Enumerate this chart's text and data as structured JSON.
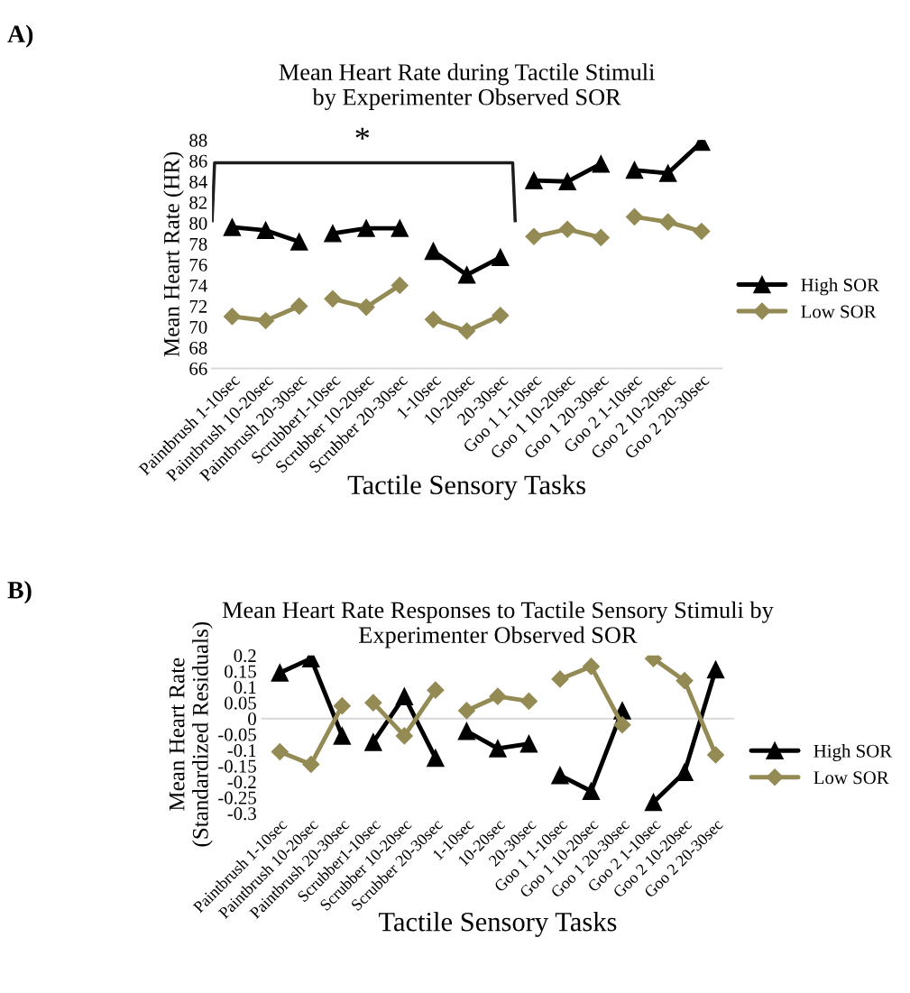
{
  "chart_data": [
    {
      "type": "line",
      "title": "Mean Heart Rate during Tactile Stimuli\nby Experimenter Observed SOR",
      "xlabel": "Tactile Sensory Tasks",
      "ylabel": "Mean Heart Rate (HR)",
      "categories": [
        "Paintbrush 1-10sec",
        "Paintbrush 10-20sec",
        "Paintbrush 20-30sec",
        "Scrubber1-10sec",
        "Scrubber 10-20sec",
        "Scrubber 20-30sec",
        "1-10sec",
        "10-20sec",
        "20-30sec",
        "Goo 1 1-10sec",
        "Goo 1 10-20sec",
        "Goo 1 20-30sec",
        "Goo 2 1-10sec",
        "Goo 2 10-20sec",
        "Goo 2 20-30sec"
      ],
      "series": [
        {
          "name": "High SOR",
          "color": "#000000",
          "marker": "triangle",
          "values": [
            79.6,
            79.3,
            78.2,
            null,
            null,
            null,
            null,
            null,
            null,
            null,
            null,
            null,
            null,
            null,
            null
          ]
        },
        {
          "color": "#000000",
          "marker": "triangle",
          "values": [
            null,
            null,
            null,
            79.0,
            79.5,
            79.5,
            null,
            null,
            null,
            null,
            null,
            null,
            null,
            null,
            null
          ]
        },
        {
          "color": "#000000",
          "marker": "triangle",
          "values": [
            null,
            null,
            null,
            null,
            null,
            null,
            77.3,
            75.0,
            76.7,
            null,
            null,
            null,
            null,
            null,
            null
          ]
        },
        {
          "color": "#000000",
          "marker": "triangle",
          "values": [
            null,
            null,
            null,
            null,
            null,
            null,
            null,
            null,
            null,
            84.1,
            84.0,
            85.7,
            null,
            null,
            null
          ]
        },
        {
          "color": "#000000",
          "marker": "triangle",
          "values": [
            null,
            null,
            null,
            null,
            null,
            null,
            null,
            null,
            null,
            null,
            null,
            null,
            85.1,
            84.8,
            87.8
          ]
        },
        {
          "name": "Low SOR",
          "color": "#948a54",
          "marker": "diamond",
          "values": [
            71.0,
            70.6,
            72.0,
            null,
            null,
            null,
            null,
            null,
            null,
            null,
            null,
            null,
            null,
            null,
            null
          ]
        },
        {
          "color": "#948a54",
          "marker": "diamond",
          "values": [
            null,
            null,
            null,
            72.7,
            71.9,
            74.0,
            null,
            null,
            null,
            null,
            null,
            null,
            null,
            null,
            null
          ]
        },
        {
          "color": "#948a54",
          "marker": "diamond",
          "values": [
            null,
            null,
            null,
            null,
            null,
            null,
            70.7,
            69.6,
            71.1,
            null,
            null,
            null,
            null,
            null,
            null
          ]
        },
        {
          "color": "#948a54",
          "marker": "diamond",
          "values": [
            null,
            null,
            null,
            null,
            null,
            null,
            null,
            null,
            null,
            78.7,
            79.4,
            78.6,
            null,
            null,
            null
          ]
        },
        {
          "color": "#948a54",
          "marker": "diamond",
          "values": [
            null,
            null,
            null,
            null,
            null,
            null,
            null,
            null,
            null,
            null,
            null,
            null,
            80.6,
            80.1,
            79.2
          ]
        }
      ],
      "ylim": [
        66,
        88
      ],
      "yticks": [
        66,
        68,
        70,
        72,
        74,
        76,
        78,
        80,
        82,
        84,
        86,
        88
      ],
      "grid": false,
      "legend": "right",
      "line_style": "solid",
      "annotations": [
        "A)",
        "*"
      ]
    },
    {
      "type": "line",
      "title": "Mean Heart Rate Responses to Tactile Sensory Stimuli by\nExperimenter Observed SOR",
      "xlabel": "Tactile Sensory Tasks",
      "ylabel": "Mean Heart Rate\n(Standardized Residuals)",
      "categories": [
        "Paintbrush 1-10sec",
        "Paintbrush 10-20sec",
        "Paintbrush 20-30sec",
        "Scrubber1-10sec",
        "Scrubber 10-20sec",
        "Scrubber 20-30sec",
        "1-10sec",
        "10-20sec",
        "20-30sec",
        "Goo 1 1-10sec",
        "Goo 1 10-20sec",
        "Goo 1 20-30sec",
        "Goo 2 1-10sec",
        "Goo 2 10-20sec",
        "Goo 2 20-30sec"
      ],
      "series": [
        {
          "name": "High SOR",
          "color": "#000000",
          "marker": "triangle",
          "values": [
            0.145,
            0.19,
            -0.055,
            null,
            null,
            null,
            null,
            null,
            null,
            null,
            null,
            null,
            null,
            null,
            null
          ]
        },
        {
          "color": "#000000",
          "marker": "triangle",
          "values": [
            null,
            null,
            null,
            -0.075,
            0.07,
            -0.125,
            null,
            null,
            null,
            null,
            null,
            null,
            null,
            null,
            null
          ]
        },
        {
          "color": "#000000",
          "marker": "triangle",
          "values": [
            null,
            null,
            null,
            null,
            null,
            null,
            -0.04,
            -0.095,
            -0.08,
            null,
            null,
            null,
            null,
            null,
            null
          ]
        },
        {
          "color": "#000000",
          "marker": "triangle",
          "values": [
            null,
            null,
            null,
            null,
            null,
            null,
            null,
            null,
            null,
            -0.18,
            -0.23,
            0.025,
            null,
            null,
            null
          ]
        },
        {
          "color": "#000000",
          "marker": "triangle",
          "values": [
            null,
            null,
            null,
            null,
            null,
            null,
            null,
            null,
            null,
            null,
            null,
            null,
            -0.265,
            -0.17,
            0.155
          ]
        },
        {
          "name": "Low SOR",
          "color": "#948a54",
          "marker": "diamond",
          "values": [
            -0.105,
            -0.145,
            0.04,
            null,
            null,
            null,
            null,
            null,
            null,
            null,
            null,
            null,
            null,
            null,
            null
          ]
        },
        {
          "color": "#948a54",
          "marker": "diamond",
          "values": [
            null,
            null,
            null,
            0.05,
            -0.055,
            0.09,
            null,
            null,
            null,
            null,
            null,
            null,
            null,
            null,
            null
          ]
        },
        {
          "color": "#948a54",
          "marker": "diamond",
          "values": [
            null,
            null,
            null,
            null,
            null,
            null,
            0.025,
            0.07,
            0.055,
            null,
            null,
            null,
            null,
            null,
            null
          ]
        },
        {
          "color": "#948a54",
          "marker": "diamond",
          "values": [
            null,
            null,
            null,
            null,
            null,
            null,
            null,
            null,
            null,
            0.125,
            0.165,
            -0.02,
            null,
            null,
            null
          ]
        },
        {
          "color": "#948a54",
          "marker": "diamond",
          "values": [
            null,
            null,
            null,
            null,
            null,
            null,
            null,
            null,
            null,
            null,
            null,
            null,
            0.19,
            0.12,
            -0.115
          ]
        }
      ],
      "ylim": [
        -0.3,
        0.2
      ],
      "yticks": [
        -0.3,
        -0.25,
        -0.2,
        -0.15,
        -0.1,
        -0.05,
        0,
        0.05,
        0.1,
        0.15,
        0.2
      ],
      "grid": false,
      "legend": "right",
      "line_style": "solid",
      "ref_lines": [
        {
          "axis": "y",
          "value": 0,
          "color": "#d9d9d9"
        }
      ],
      "annotations": [
        "B)"
      ]
    }
  ]
}
